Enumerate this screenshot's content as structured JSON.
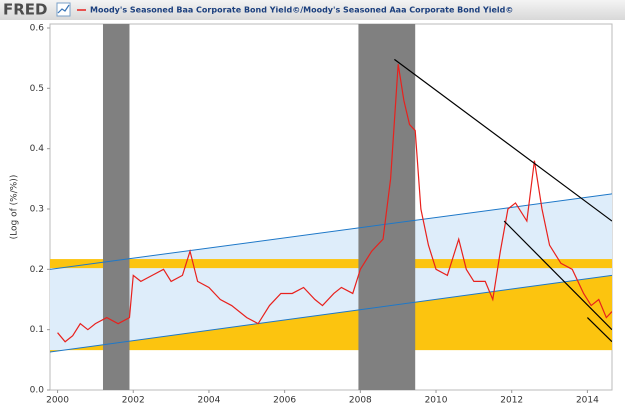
{
  "chart_data": {
    "type": "line",
    "logo": "FRED",
    "y_label": "(Log of (%/%))",
    "xlim": [
      1999.8,
      2014.65
    ],
    "ylim": [
      0,
      0.6
    ],
    "xticks": [
      2000,
      2002,
      2004,
      2006,
      2008,
      2010,
      2012,
      2014
    ],
    "yticks": [
      {
        "value": 0,
        "label": "0.0"
      },
      0.1,
      0.2,
      0.3,
      0.4,
      0.5,
      0.6
    ],
    "x": [
      2000.0,
      2000.2,
      2000.4,
      2000.6,
      2000.8,
      2001.0,
      2001.3,
      2001.6,
      2001.9,
      2002.0,
      2002.2,
      2002.5,
      2002.8,
      2003.0,
      2003.3,
      2003.5,
      2003.7,
      2004.0,
      2004.3,
      2004.6,
      2005.0,
      2005.3,
      2005.6,
      2005.9,
      2006.2,
      2006.5,
      2006.8,
      2007.0,
      2007.3,
      2007.5,
      2007.8,
      2008.0,
      2008.3,
      2008.6,
      2008.8,
      2009.0,
      2009.15,
      2009.3,
      2009.45,
      2009.6,
      2009.8,
      2010.0,
      2010.3,
      2010.6,
      2010.8,
      2011.0,
      2011.3,
      2011.5,
      2011.7,
      2011.9,
      2012.1,
      2012.4,
      2012.6,
      2012.8,
      2013.0,
      2013.3,
      2013.6,
      2013.9,
      2014.1,
      2014.3,
      2014.5,
      2014.65
    ],
    "series": [
      {
        "name": "Moody's Seasoned Baa Corporate Bond Yield©/Moody's Seasoned Aaa Corporate Bond Yield©",
        "color": "#e8211d",
        "values": [
          0.095,
          0.08,
          0.09,
          0.11,
          0.1,
          0.11,
          0.12,
          0.11,
          0.12,
          0.19,
          0.18,
          0.19,
          0.2,
          0.18,
          0.19,
          0.23,
          0.18,
          0.17,
          0.15,
          0.14,
          0.12,
          0.11,
          0.14,
          0.16,
          0.16,
          0.17,
          0.15,
          0.14,
          0.16,
          0.17,
          0.16,
          0.2,
          0.23,
          0.25,
          0.35,
          0.54,
          0.48,
          0.44,
          0.43,
          0.3,
          0.24,
          0.2,
          0.19,
          0.25,
          0.2,
          0.18,
          0.18,
          0.15,
          0.23,
          0.3,
          0.31,
          0.28,
          0.38,
          0.3,
          0.24,
          0.21,
          0.2,
          0.16,
          0.14,
          0.15,
          0.12,
          0.13
        ]
      }
    ],
    "recessions": [
      [
        2001.2,
        2001.9
      ],
      [
        2007.95,
        2009.45
      ]
    ],
    "recession_color": "#808080",
    "channel": {
      "upper": [
        [
          1999.8,
          0.2
        ],
        [
          2014.65,
          0.325
        ]
      ],
      "lower": [
        [
          1999.8,
          0.063
        ],
        [
          2014.65,
          0.19
        ]
      ]
    },
    "channel_color": "#1e78c8",
    "channel_fill": "#deedfa",
    "support_floor": 0.066,
    "hband": [
      0.202,
      0.217
    ],
    "band_color": "#fcc40f",
    "trendlines": [
      [
        [
          2008.9,
          0.548
        ],
        [
          2014.65,
          0.28
        ]
      ],
      [
        [
          2011.8,
          0.28
        ],
        [
          2014.65,
          0.1
        ]
      ],
      [
        [
          2014.0,
          0.12
        ],
        [
          2014.65,
          0.08
        ]
      ]
    ],
    "trendline_color": "#000000"
  }
}
